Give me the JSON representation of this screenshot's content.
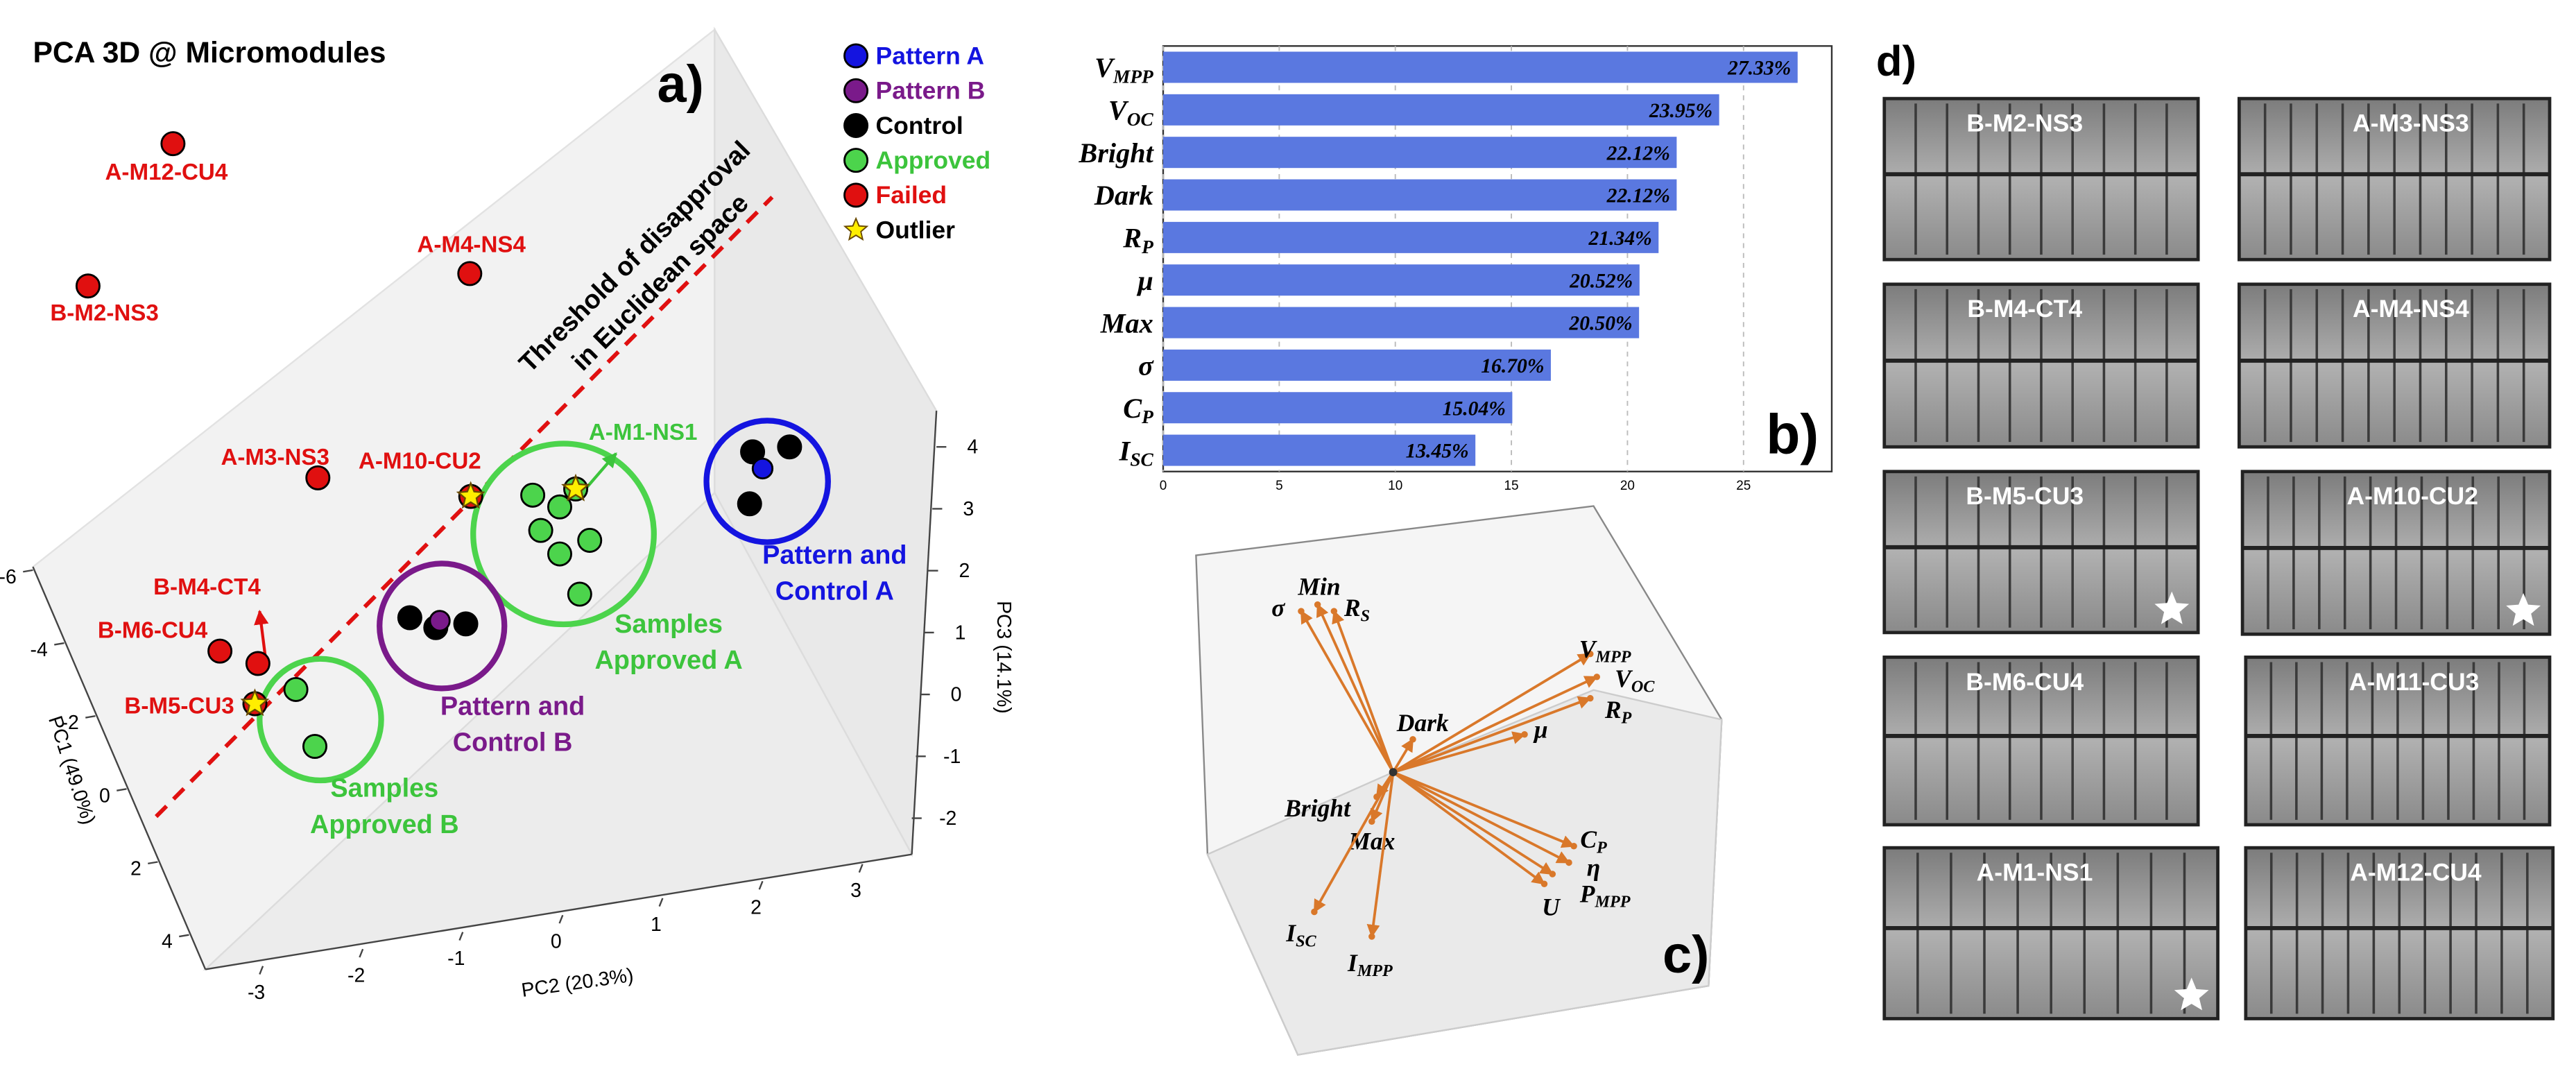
{
  "chart_data": [
    {
      "type": "scatter3d",
      "title": "PCA 3D @ Micromodules",
      "panel_label": "a)",
      "xlabel": "PC2 (20.3%)",
      "ylabel": "PC3 (14.1%)",
      "zlabel": "PC1 (49.0%)",
      "xlim": [
        -3,
        3
      ],
      "xticks": [
        -3,
        -2,
        -1,
        0,
        1,
        2,
        3
      ],
      "ylim": [
        -2,
        4
      ],
      "yticks": [
        -2,
        -1,
        0,
        1,
        2,
        3,
        4
      ],
      "zlim": [
        -6,
        4
      ],
      "zticks": [
        -6,
        -4,
        -2,
        0,
        2,
        4
      ],
      "series": [
        {
          "name": "Pattern A",
          "color": "#1414e0",
          "legend_text_color": "#1414e0",
          "x": [
            2.0
          ],
          "y": [
            3.65
          ]
        },
        {
          "name": "Pattern B",
          "color": "#7a1a8a",
          "legend_text_color": "#7a1a8a",
          "x": [
            -1.23
          ],
          "y": [
            1.19
          ]
        },
        {
          "name": "Control",
          "color": "#000000",
          "legend_text_color": "#000000",
          "x": [
            1.9,
            2.27,
            1.87,
            -1.53,
            -1.27,
            -0.97
          ],
          "y": [
            3.92,
            4.0,
            3.08,
            1.24,
            1.08,
            1.14
          ]
        },
        {
          "name": "Approved",
          "color": "#4cd44c",
          "legend_text_color": "#3cc43c",
          "x": [
            -0.3,
            -0.03,
            0.27,
            -0.22,
            -0.03,
            0.17,
            0.13,
            -2.67,
            -2.48
          ],
          "y": [
            3.22,
            3.03,
            2.49,
            2.65,
            2.27,
            1.62,
            3.32,
            0.08,
            -0.84
          ],
          "labels": [
            null,
            null,
            null,
            null,
            null,
            null,
            "A-M1-NS1",
            null,
            null
          ]
        },
        {
          "name": "Failed",
          "color": "#e01010",
          "legend_text_color": "#e01010",
          "x": [
            -3.9,
            -4.75,
            -0.93,
            -2.45,
            -0.92,
            -3.05,
            -3.43,
            -3.08
          ],
          "y": [
            8.9,
            6.6,
            6.8,
            3.5,
            3.2,
            0.5,
            0.7,
            -0.15
          ],
          "labels": [
            "A-M12-CU4",
            "B-M2-NS3",
            "A-M4-NS4",
            "A-M3-NS3",
            "A-M10-CU2",
            "B-M4-CT4",
            "B-M6-CU4",
            "B-M5-CU3"
          ]
        },
        {
          "name": "Outlier",
          "color": "#ffee00",
          "legend_text_color": "#000000",
          "marker": "star",
          "x": [
            -0.92,
            0.13,
            -3.08
          ],
          "y": [
            3.2,
            3.32,
            -0.15
          ]
        }
      ],
      "annotations": [
        {
          "lines": [
            "Threshold of disapproval",
            "in Euclidean space"
          ],
          "color": "#000000"
        },
        {
          "lines": [
            "Pattern and",
            "Control A"
          ],
          "color": "#1414e0"
        },
        {
          "lines": [
            "Samples",
            "Approved A"
          ],
          "color": "#3cc43c"
        },
        {
          "lines": [
            "Pattern and",
            "Control B"
          ],
          "color": "#7a1a8a"
        },
        {
          "lines": [
            "Samples",
            "Approved B"
          ],
          "color": "#3cc43c"
        }
      ]
    },
    {
      "type": "barh",
      "panel_label": "b)",
      "color": "#5a78e0",
      "categories": [
        {
          "text": "V",
          "sub": "MPP"
        },
        {
          "text": "V",
          "sub": "OC"
        },
        {
          "text": "Bright"
        },
        {
          "text": "Dark"
        },
        {
          "text": "R",
          "sub": "P"
        },
        {
          "text": "μ"
        },
        {
          "text": "Max"
        },
        {
          "text": "σ"
        },
        {
          "text": "C",
          "sub": "P"
        },
        {
          "text": "I",
          "sub": "SC"
        }
      ],
      "values": [
        27.33,
        23.95,
        22.12,
        22.12,
        21.34,
        20.52,
        20.5,
        16.7,
        15.04,
        13.45
      ],
      "value_labels": [
        "27.33%",
        "23.95%",
        "22.12%",
        "22.12%",
        "21.34%",
        "20.52%",
        "20.50%",
        "16.70%",
        "15.04%",
        "13.45%"
      ],
      "xlim": [
        0,
        28.8
      ],
      "xticks": [
        0,
        5,
        10,
        15,
        20,
        25
      ],
      "grid": true
    },
    {
      "type": "biplot",
      "panel_label": "c)",
      "color": "#d9782a",
      "vectors": [
        {
          "label": {
            "text": "σ"
          },
          "x": -0.56,
          "y": 0.98
        },
        {
          "label": {
            "text": "Min"
          },
          "x": -0.46,
          "y": 1.02
        },
        {
          "label": {
            "text": "R",
            "sub": "S"
          },
          "x": -0.36,
          "y": 0.98
        },
        {
          "label": {
            "text": "V",
            "sub": "MPP"
          },
          "x": 1.2,
          "y": 0.72
        },
        {
          "label": {
            "text": "V",
            "sub": "OC"
          },
          "x": 1.24,
          "y": 0.58
        },
        {
          "label": {
            "text": "R",
            "sub": "P"
          },
          "x": 1.2,
          "y": 0.45
        },
        {
          "label": {
            "text": "μ"
          },
          "x": 0.8,
          "y": 0.23
        },
        {
          "label": {
            "text": "Dark"
          },
          "x": 0.12,
          "y": 0.2
        },
        {
          "label": {
            "text": "Bright"
          },
          "x": -0.1,
          "y": -0.15
        },
        {
          "label": {
            "text": "Max"
          },
          "x": -0.13,
          "y": -0.3
        },
        {
          "label": {
            "text": "C",
            "sub": "P"
          },
          "x": 1.1,
          "y": -0.45
        },
        {
          "label": {
            "text": "η"
          },
          "x": 1.07,
          "y": -0.55
        },
        {
          "label": {
            "text": "P",
            "sub": "MPP"
          },
          "x": 0.97,
          "y": -0.62
        },
        {
          "label": {
            "text": "U"
          },
          "x": 0.92,
          "y": -0.68
        },
        {
          "label": {
            "text": "I",
            "sub": "SC"
          },
          "x": -0.48,
          "y": -0.85
        },
        {
          "label": {
            "text": "I",
            "sub": "MPP"
          },
          "x": -0.13,
          "y": -1.0
        }
      ]
    }
  ],
  "image_panel": {
    "panel_label": "d)",
    "items": [
      {
        "label": "B-M2-NS3",
        "cells": 10
      },
      {
        "label": "A-M3-NS3",
        "cells": 12
      },
      {
        "label": "B-M4-CT4",
        "cells": 10
      },
      {
        "label": "A-M4-NS4",
        "cells": 12
      },
      {
        "label": "B-M5-CU3",
        "cells": 10,
        "star": true
      },
      {
        "label": "A-M10-CU2",
        "cells": 12,
        "star": true
      },
      {
        "label": "B-M6-CU4",
        "cells": 10
      },
      {
        "label": "A-M11-CU3",
        "cells": 12
      },
      {
        "label": "A-M1-NS1",
        "cells": 10,
        "star": true
      },
      {
        "label": "A-M12-CU4",
        "cells": 12
      }
    ]
  }
}
